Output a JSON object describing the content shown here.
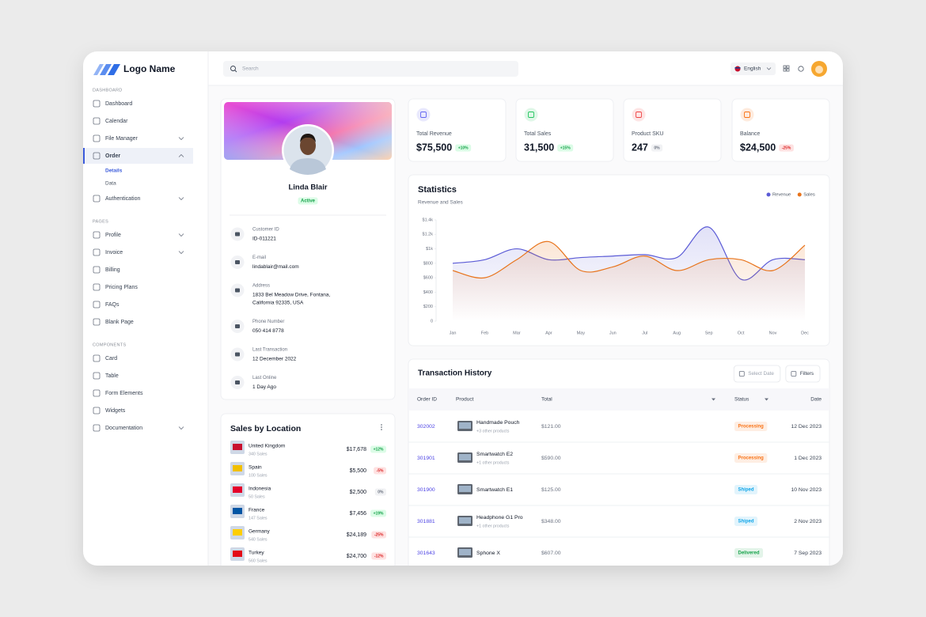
{
  "sidebar": {
    "logo": "Logo Name",
    "sections": [
      {
        "title": "DASHBOARD",
        "items": [
          {
            "label": "Dashboard"
          },
          {
            "label": "Calendar"
          },
          {
            "label": "File Manager",
            "expandable": true
          },
          {
            "label": "Order",
            "expandable": true,
            "active": true,
            "children": [
              "Details",
              "Data"
            ]
          },
          {
            "label": "Authentication",
            "expandable": true
          }
        ]
      },
      {
        "title": "PAGES",
        "items": [
          {
            "label": "Profile",
            "expandable": true
          },
          {
            "label": "Invoice",
            "expandable": true
          },
          {
            "label": "Billing"
          },
          {
            "label": "Pricing Plans"
          },
          {
            "label": "FAQs"
          },
          {
            "label": "Blank Page"
          }
        ]
      },
      {
        "title": "COMPONENTS",
        "items": [
          {
            "label": "Card"
          },
          {
            "label": "Table"
          },
          {
            "label": "Form Elements"
          },
          {
            "label": "Widgets"
          },
          {
            "label": "Documentation",
            "expandable": true
          }
        ]
      }
    ]
  },
  "header": {
    "search_placeholder": "Search",
    "language": "English"
  },
  "profile": {
    "name": "Linda Blair",
    "status": "Active",
    "fields": [
      {
        "label": "Customer ID",
        "value": [
          "ID-011221"
        ]
      },
      {
        "label": "E-mail",
        "value": [
          "lindablair@mail.com"
        ]
      },
      {
        "label": "Address",
        "value": [
          "1833 Bel Meadow Drive, Fontana,",
          "California 92335, USA"
        ]
      },
      {
        "label": "Phone Number",
        "value": [
          "050 414 8778"
        ]
      },
      {
        "label": "Last Transaction",
        "value": [
          "12 December 2022"
        ]
      },
      {
        "label": "Last Online",
        "value": [
          "1 Day Ago"
        ]
      }
    ]
  },
  "stats": [
    {
      "label": "Total Revenue",
      "value": "$75,500",
      "change": "+10%",
      "color": "#6366f1"
    },
    {
      "label": "Total Sales",
      "value": "31,500",
      "change": "+15%",
      "color": "#22c55e"
    },
    {
      "label": "Product SKU",
      "value": "247",
      "change": "0%",
      "color": "#ef4444"
    },
    {
      "label": "Balance",
      "value": "$24,500",
      "change": "-25%",
      "color": "#f97316"
    }
  ],
  "chart_data": {
    "type": "line",
    "title": "Statistics",
    "subtitle": "Revenue and Sales",
    "categories": [
      "Jan",
      "Feb",
      "Mar",
      "Apr",
      "May",
      "Jun",
      "Jul",
      "Aug",
      "Sep",
      "Oct",
      "Nov",
      "Dec"
    ],
    "series": [
      {
        "name": "Revenue",
        "color": "#5b5bd6",
        "values": [
          800,
          850,
          1000,
          850,
          880,
          900,
          920,
          880,
          1300,
          580,
          850,
          850
        ]
      },
      {
        "name": "Sales",
        "color": "#e8731a",
        "values": [
          700,
          600,
          850,
          1100,
          700,
          750,
          900,
          700,
          850,
          850,
          700,
          1050
        ]
      }
    ],
    "ylim": [
      0,
      1400
    ],
    "yticks": [
      0,
      {
        "value": 200,
        "label": "$200"
      },
      {
        "value": 400,
        "label": "$400"
      },
      {
        "value": 600,
        "label": "$600"
      },
      {
        "value": 800,
        "label": "$800"
      },
      {
        "value": 1000,
        "label": "$1k"
      },
      {
        "value": 1200,
        "label": "$1.2k"
      },
      {
        "value": 1400,
        "label": "$1.4k"
      }
    ],
    "grid": false,
    "legend": "top-right"
  },
  "sales_by_location": {
    "title": "Sales by Location",
    "rows": [
      {
        "country": "United Kingdom",
        "sales": "340 Sales",
        "amount": "$17,678",
        "change": "+12%"
      },
      {
        "country": "Spain",
        "sales": "100 Sales",
        "amount": "$5,500",
        "change": "-5%"
      },
      {
        "country": "Indonesia",
        "sales": "50 Sales",
        "amount": "$2,500",
        "change": "0%"
      },
      {
        "country": "France",
        "sales": "147 Sales",
        "amount": "$7,456",
        "change": "+19%"
      },
      {
        "country": "Germany",
        "sales": "540 Sales",
        "amount": "$24,189",
        "change": "-25%"
      },
      {
        "country": "Turkey",
        "sales": "560 Sales",
        "amount": "$24,700",
        "change": "-12%"
      }
    ]
  },
  "transactions": {
    "title": "Transaction History",
    "buttons": [
      "Select Date",
      "Filters"
    ],
    "columns": [
      "Order ID",
      "Product",
      "Total",
      "Status",
      "Date"
    ],
    "rows": [
      {
        "order_id": "302002",
        "product": "Handmade Pouch",
        "note": "+3 other products",
        "total": "$121.00",
        "status": "Processing",
        "status_color": "#f97316",
        "date": "12 Dec 2023"
      },
      {
        "order_id": "301901",
        "product": "Smartwatch E2",
        "note": "+1 other products",
        "total": "$590.00",
        "status": "Processing",
        "status_color": "#f97316",
        "date": "1 Dec 2023"
      },
      {
        "order_id": "301900",
        "product": "Smartwatch E1",
        "total": "$125.00",
        "status": "Shiped",
        "status_color": "#0ea5e9",
        "date": "10 Nov 2023"
      },
      {
        "order_id": "301881",
        "product": "Headphone G1 Pro",
        "note": "+1 other products",
        "total": "$348.00",
        "status": "Shiped",
        "status_color": "#0ea5e9",
        "date": "2 Nov 2023"
      },
      {
        "order_id": "301643",
        "product": "Sphone X",
        "total": "$607.00",
        "status": "Delivered",
        "status_color": "#16a34a",
        "date": "7 Sep 2023"
      }
    ]
  }
}
